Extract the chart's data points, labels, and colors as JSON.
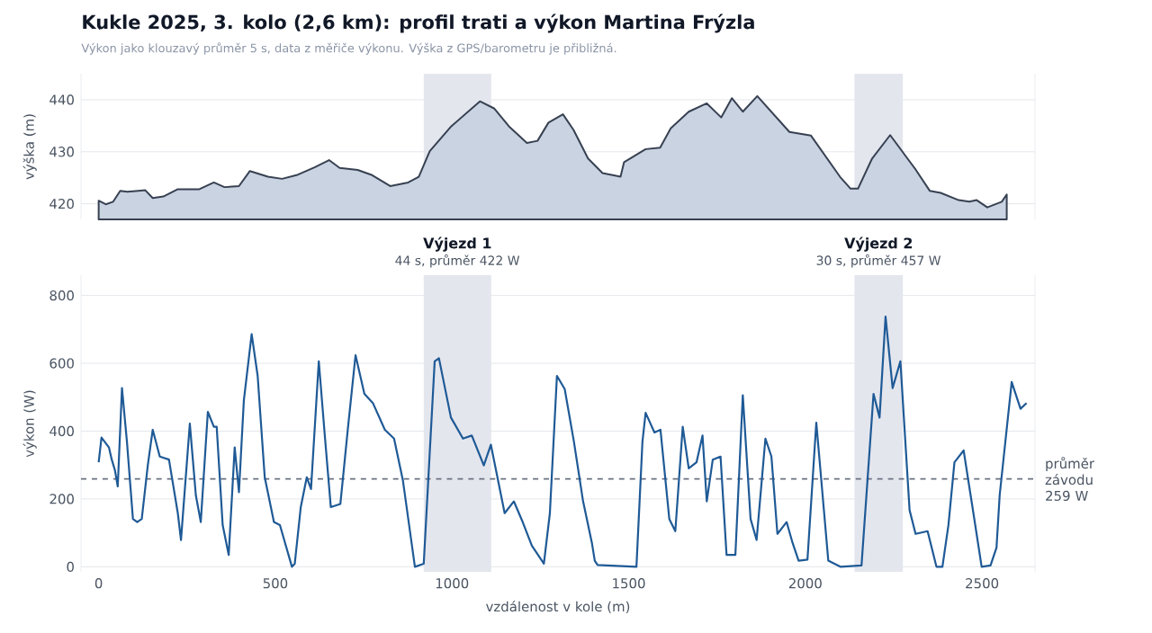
{
  "chart_data": [
    {
      "type": "area",
      "title": "Kukle 2025, 3. kolo (2,6 km): profil trati a výkon Martina Frýzla",
      "subtitle": "Výkon jako klouzavý průměr 5 s, data z měřiče výkonu. Výška z GPS/barometru je přibližná.",
      "ylabel": "výška (m)",
      "x": [
        0,
        20,
        41,
        61,
        81,
        112,
        132,
        153,
        183,
        224,
        285,
        326,
        356,
        397,
        428,
        479,
        519,
        560,
        611,
        652,
        682,
        733,
        774,
        825,
        876,
        906,
        937,
        998,
        1079,
        1120,
        1161,
        1212,
        1242,
        1273,
        1314,
        1344,
        1385,
        1426,
        1477,
        1487,
        1548,
        1589,
        1619,
        1670,
        1721,
        1762,
        1792,
        1823,
        1864,
        1955,
        2016,
        2098,
        2128,
        2149,
        2189,
        2240,
        2312,
        2352,
        2383,
        2434,
        2464,
        2485,
        2515,
        2556,
        2570
      ],
      "series": [
        {
          "color": "#c9d3e2",
          "values": [
            420.6,
            419.9,
            420.4,
            422.5,
            422.3,
            422.5,
            422.6,
            421.1,
            421.4,
            422.8,
            422.8,
            424.1,
            423.2,
            423.4,
            426.3,
            425.2,
            424.8,
            425.5,
            427,
            428.4,
            426.9,
            426.5,
            425.5,
            423.4,
            424.1,
            425.2,
            430.1,
            434.9,
            439.7,
            438.3,
            434.9,
            431.7,
            432.1,
            435.6,
            437.2,
            434.2,
            428.7,
            425.9,
            425.2,
            428,
            430.5,
            430.8,
            434.5,
            437.7,
            439.3,
            436.6,
            440.3,
            437.7,
            440.7,
            433.8,
            433.1,
            425.2,
            422.9,
            422.9,
            428.7,
            433.2,
            426.6,
            422.5,
            422.1,
            420.7,
            420.4,
            420.7,
            419.3,
            420.4,
            421.8
          ]
        }
      ],
      "xlim": [
        -50,
        2650
      ],
      "ylim": [
        417,
        445
      ],
      "xticks": [
        0,
        500,
        1000,
        1500,
        2000,
        2500
      ],
      "yticks": [
        420,
        430,
        440
      ],
      "grid": "y",
      "tick_labels": "y",
      "bands": [
        {
          "axis": "x",
          "from": 920,
          "to": 1111,
          "color": "#e4e6ee"
        },
        {
          "axis": "x",
          "from": 2139,
          "to": 2276,
          "color": "#e4e6ee"
        }
      ]
    },
    {
      "type": "line",
      "xlabel": "vzdálenost v kole (m)",
      "ylabel": "výkon (W)",
      "x": [
        0,
        8,
        29,
        37,
        46,
        54,
        66,
        80,
        97,
        109,
        122,
        139,
        153,
        173,
        199,
        224,
        233,
        258,
        275,
        289,
        309,
        326,
        334,
        351,
        368,
        385,
        397,
        411,
        433,
        450,
        470,
        496,
        513,
        547,
        555,
        572,
        589,
        601,
        623,
        640,
        657,
        684,
        705,
        727,
        752,
        776,
        810,
        836,
        861,
        895,
        920,
        951,
        963,
        997,
        1031,
        1056,
        1090,
        1110,
        1132,
        1149,
        1175,
        1200,
        1226,
        1260,
        1277,
        1297,
        1319,
        1345,
        1371,
        1396,
        1404,
        1412,
        1522,
        1539,
        1548,
        1573,
        1590,
        1615,
        1632,
        1653,
        1670,
        1692,
        1709,
        1721,
        1738,
        1760,
        1777,
        1802,
        1823,
        1845,
        1862,
        1887,
        1904,
        1921,
        1947,
        1964,
        1981,
        2006,
        2031,
        2065,
        2099,
        2159,
        2193,
        2210,
        2227,
        2247,
        2269,
        2295,
        2312,
        2346,
        2371,
        2388,
        2405,
        2422,
        2448,
        2473,
        2499,
        2524,
        2541,
        2550,
        2584,
        2609,
        2626
      ],
      "series": [
        {
          "color": "#1f5a96",
          "values": [
            308,
            381,
            352,
            316,
            285,
            237,
            527,
            369,
            141,
            132,
            141,
            299,
            404,
            325,
            316,
            158,
            79,
            422,
            211,
            132,
            457,
            413,
            413,
            123,
            35,
            352,
            220,
            492,
            686,
            563,
            264,
            132,
            123,
            0,
            9,
            176,
            264,
            229,
            606,
            387,
            176,
            185,
            404,
            624,
            510,
            483,
            404,
            378,
            255,
            0,
            9,
            606,
            615,
            440,
            378,
            387,
            299,
            360,
            246,
            158,
            193,
            132,
            62,
            9,
            158,
            563,
            524,
            369,
            193,
            70,
            18,
            5,
            0,
            369,
            454,
            396,
            404,
            141,
            105,
            413,
            290,
            308,
            387,
            193,
            316,
            325,
            35,
            35,
            506,
            141,
            79,
            378,
            325,
            97,
            132,
            70,
            18,
            21,
            425,
            18,
            0,
            4,
            510,
            440,
            738,
            527,
            606,
            167,
            97,
            105,
            0,
            0,
            123,
            308,
            343,
            176,
            0,
            4,
            56,
            211,
            545,
            466,
            483
          ]
        }
      ],
      "xlim": [
        -50,
        2650
      ],
      "ylim": [
        -15,
        860
      ],
      "xticks": [
        0,
        500,
        1000,
        1500,
        2000,
        2500
      ],
      "yticks": [
        0,
        200,
        400,
        600,
        800
      ],
      "grid": "y",
      "bands": [
        {
          "axis": "x",
          "from": 920,
          "to": 1111,
          "color": "#e4e6ee",
          "label": "Výjezd 1"
        },
        {
          "axis": "x",
          "from": 2139,
          "to": 2276,
          "color": "#e4e6ee",
          "label": "Výjezd 2"
        }
      ],
      "annotations": [
        {
          "text": "44 s, průměr 422 W",
          "x": 1015,
          "y": 860
        },
        {
          "text": "30 s, průměr 457 W",
          "x": 2207,
          "y": 860
        }
      ],
      "ref_lines": [
        {
          "axis": "y",
          "value": 259,
          "label": "průměr závodu 259 W",
          "color": "#6b7280",
          "line_style": "dashed"
        }
      ]
    }
  ]
}
